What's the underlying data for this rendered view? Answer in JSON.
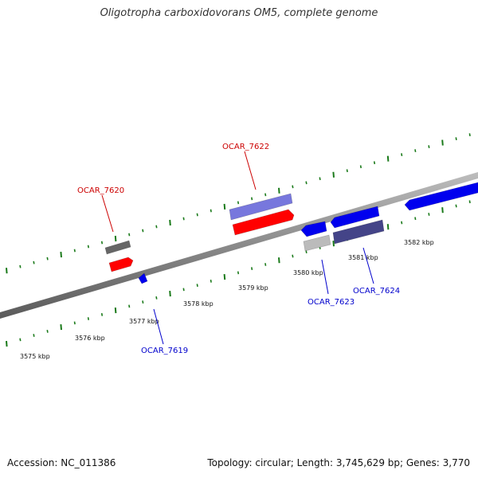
{
  "title": "Oligotropha carboxidovorans OM5, complete genome",
  "footer": {
    "accession": "Accession: NC_011386",
    "summary": "Topology: circular; Length: 3,745,629 bp; Genes: 3,770"
  },
  "map": {
    "backbone_color": "#8a8a8a",
    "tick_color": "#1a7a1a",
    "forward_label_color": "#cc0000",
    "reverse_label_color": "#0000cc",
    "position_labels": [
      "3575 kbp",
      "3576 kbp",
      "3577 kbp",
      "3578 kbp",
      "3579 kbp",
      "3580 kbp",
      "3581 kbp",
      "3582 kbp"
    ],
    "gene_labels": [
      "OCAR_7620",
      "OCAR_7622",
      "OCAR_7619",
      "OCAR_7623",
      "OCAR_7624"
    ]
  },
  "features": [
    {
      "id": "f1",
      "color": "#666666"
    },
    {
      "id": "f2",
      "color": "#ff0000"
    },
    {
      "id": "f3",
      "color": "#7777dd"
    },
    {
      "id": "f4",
      "color": "#ff0000"
    },
    {
      "id": "f5",
      "color": "#0000ee"
    },
    {
      "id": "f6",
      "color": "#0000ee"
    },
    {
      "id": "f7",
      "color": "#bbbbbb"
    },
    {
      "id": "f8",
      "color": "#0000ee"
    },
    {
      "id": "f9",
      "color": "#444488"
    },
    {
      "id": "f10",
      "color": "#0000ee"
    }
  ]
}
